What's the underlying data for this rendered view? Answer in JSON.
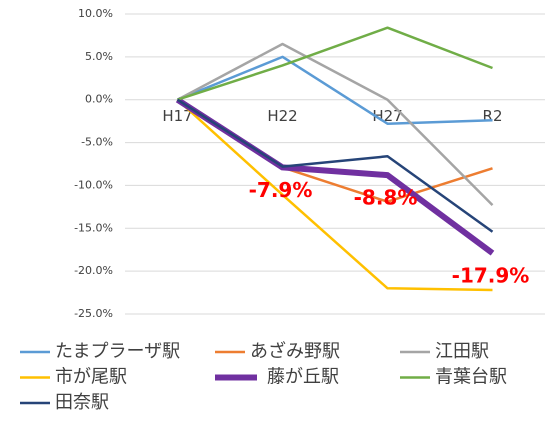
{
  "chart_data": {
    "type": "line",
    "categories": [
      "H17",
      "H22",
      "H27",
      "R2"
    ],
    "ylim": [
      -25,
      10
    ],
    "yticks": [
      {
        "value": -25,
        "label": "-25.0%"
      },
      {
        "value": -20,
        "label": "-20.0%"
      },
      {
        "value": -15,
        "label": "-15.0%"
      },
      {
        "value": -10,
        "label": "-10.0%"
      },
      {
        "value": -5,
        "label": "-5.0%"
      },
      {
        "value": 0,
        "label": "0.0%"
      },
      {
        "value": 5,
        "label": "5.0%"
      },
      {
        "value": 10,
        "label": "10.0%"
      }
    ],
    "grid": true,
    "legend": "bottom",
    "series": [
      {
        "name": "たまプラーザ駅",
        "color": "#5b9bd5",
        "values": [
          0,
          5.0,
          -2.8,
          -2.4
        ]
      },
      {
        "name": "あざみ野駅",
        "color": "#ed7d31",
        "values": [
          0,
          -7.9,
          -11.9,
          -8.0
        ]
      },
      {
        "name": "江田駅",
        "color": "#a5a5a5",
        "values": [
          0,
          6.5,
          0,
          -12.3
        ]
      },
      {
        "name": "市が尾駅",
        "color": "#ffc000",
        "values": [
          0,
          -11.1,
          -22.0,
          -22.2
        ]
      },
      {
        "name": "藤が丘駅",
        "color": "#7030a0",
        "values": [
          0,
          -7.9,
          -8.8,
          -17.9
        ],
        "value_labels": [
          null,
          "-7.9%",
          "-8.8%",
          "-17.9%"
        ],
        "label_color": "#ff0000"
      },
      {
        "name": "青葉台駅",
        "color": "#70ad47",
        "values": [
          0,
          4.0,
          8.4,
          3.7
        ]
      },
      {
        "name": "田奈駅",
        "color": "#264478",
        "values": [
          0,
          -7.8,
          -6.6,
          -15.4
        ]
      }
    ]
  }
}
